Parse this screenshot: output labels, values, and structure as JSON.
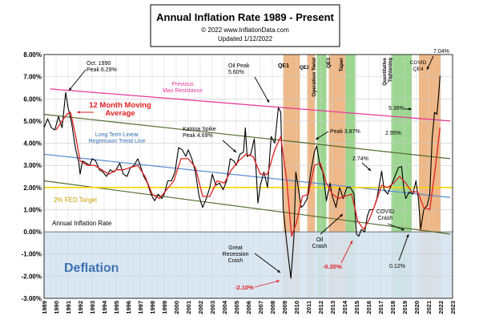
{
  "header": {
    "title": "Annual  Inflation Rate 1989 - Present",
    "copyright": "© 2022  www.InflationData.com",
    "updated": "Updated   1/12/2022"
  },
  "chart_data": {
    "type": "line",
    "title": "Annual  Inflation Rate 1989 - Present",
    "xlabel": "",
    "ylabel": "",
    "xlim": [
      1989,
      2023
    ],
    "ylim": [
      -3.0,
      8.0
    ],
    "grid": true,
    "x_ticks": [
      "1989",
      "1990",
      "1991",
      "1992",
      "1993",
      "1994",
      "1995",
      "1996",
      "1997",
      "1998",
      "1999",
      "2000",
      "2001",
      "2002",
      "2003",
      "2004",
      "2005",
      "2006",
      "2007",
      "2008",
      "2009",
      "2010",
      "2011",
      "2012",
      "2013",
      "2014",
      "2015",
      "2016",
      "2017",
      "2018",
      "2019",
      "2020",
      "2021",
      "2022",
      "2023"
    ],
    "y_ticks": [
      "-3.00%",
      "-2.00%",
      "-1.00%",
      "0.00%",
      "1.00%",
      "2.00%",
      "3.00%",
      "4.00%",
      "5.00%",
      "6.00%",
      "7.00%",
      "8.00%"
    ],
    "series": [
      {
        "name": "Annual Inflation Rate",
        "color": "#000000",
        "points": [
          [
            1989.0,
            4.7
          ],
          [
            1989.3,
            5.1
          ],
          [
            1989.6,
            4.7
          ],
          [
            1989.9,
            4.6
          ],
          [
            1990.2,
            5.2
          ],
          [
            1990.5,
            4.7
          ],
          [
            1990.8,
            6.29
          ],
          [
            1991.0,
            5.6
          ],
          [
            1991.3,
            4.9
          ],
          [
            1991.6,
            3.8
          ],
          [
            1991.9,
            3.1
          ],
          [
            1992.0,
            2.6
          ],
          [
            1992.2,
            3.2
          ],
          [
            1992.5,
            3.1
          ],
          [
            1992.8,
            3.0
          ],
          [
            1993.0,
            3.3
          ],
          [
            1993.3,
            3.2
          ],
          [
            1993.6,
            2.8
          ],
          [
            1993.9,
            2.7
          ],
          [
            1994.2,
            2.5
          ],
          [
            1994.5,
            2.8
          ],
          [
            1994.8,
            2.7
          ],
          [
            1995.0,
            2.8
          ],
          [
            1995.3,
            3.1
          ],
          [
            1995.6,
            2.6
          ],
          [
            1995.9,
            2.5
          ],
          [
            1996.2,
            2.9
          ],
          [
            1996.5,
            3.0
          ],
          [
            1996.8,
            3.3
          ],
          [
            1997.0,
            3.0
          ],
          [
            1997.3,
            2.5
          ],
          [
            1997.6,
            2.2
          ],
          [
            1997.9,
            1.7
          ],
          [
            1998.2,
            1.4
          ],
          [
            1998.5,
            1.7
          ],
          [
            1998.8,
            1.5
          ],
          [
            1999.0,
            1.7
          ],
          [
            1999.3,
            2.3
          ],
          [
            1999.6,
            2.3
          ],
          [
            1999.9,
            2.7
          ],
          [
            2000.2,
            3.8
          ],
          [
            2000.5,
            3.7
          ],
          [
            2000.8,
            3.4
          ],
          [
            2001.0,
            3.7
          ],
          [
            2001.3,
            3.3
          ],
          [
            2001.6,
            2.7
          ],
          [
            2001.9,
            1.6
          ],
          [
            2002.2,
            1.1
          ],
          [
            2002.5,
            1.5
          ],
          [
            2002.8,
            2.0
          ],
          [
            2003.0,
            2.6
          ],
          [
            2003.3,
            2.1
          ],
          [
            2003.6,
            2.2
          ],
          [
            2003.9,
            1.9
          ],
          [
            2004.2,
            2.3
          ],
          [
            2004.5,
            3.3
          ],
          [
            2004.8,
            3.2
          ],
          [
            2005.0,
            3.0
          ],
          [
            2005.3,
            3.5
          ],
          [
            2005.6,
            3.6
          ],
          [
            2005.75,
            4.69
          ],
          [
            2005.9,
            3.4
          ],
          [
            2006.2,
            3.5
          ],
          [
            2006.5,
            4.2
          ],
          [
            2006.8,
            1.3
          ],
          [
            2007.0,
            2.1
          ],
          [
            2007.3,
            2.7
          ],
          [
            2007.6,
            2.0
          ],
          [
            2007.9,
            4.3
          ],
          [
            2008.2,
            4.0
          ],
          [
            2008.5,
            5.6
          ],
          [
            2008.7,
            5.4
          ],
          [
            2008.9,
            1.1
          ],
          [
            2009.1,
            0.0
          ],
          [
            2009.3,
            -1.0
          ],
          [
            2009.55,
            -2.1
          ],
          [
            2009.8,
            -0.2
          ],
          [
            2009.95,
            2.7
          ],
          [
            2010.1,
            2.2
          ],
          [
            2010.4,
            1.1
          ],
          [
            2010.6,
            1.2
          ],
          [
            2010.9,
            1.5
          ],
          [
            2011.2,
            2.7
          ],
          [
            2011.5,
            3.6
          ],
          [
            2011.7,
            3.87
          ],
          [
            2011.95,
            3.0
          ],
          [
            2012.2,
            2.7
          ],
          [
            2012.5,
            1.4
          ],
          [
            2012.8,
            2.2
          ],
          [
            2013.0,
            1.6
          ],
          [
            2013.3,
            1.1
          ],
          [
            2013.6,
            2.0
          ],
          [
            2013.9,
            1.5
          ],
          [
            2014.2,
            2.0
          ],
          [
            2014.5,
            2.0
          ],
          [
            2014.8,
            1.7
          ],
          [
            2015.0,
            -0.1
          ],
          [
            2015.2,
            -0.2
          ],
          [
            2015.4,
            0.1
          ],
          [
            2015.7,
            0.0
          ],
          [
            2015.9,
            0.7
          ],
          [
            2016.1,
            1.0
          ],
          [
            2016.4,
            1.0
          ],
          [
            2016.7,
            1.5
          ],
          [
            2016.9,
            2.1
          ],
          [
            2017.1,
            2.74
          ],
          [
            2017.3,
            1.9
          ],
          [
            2017.6,
            1.7
          ],
          [
            2017.9,
            2.1
          ],
          [
            2018.2,
            2.5
          ],
          [
            2018.5,
            2.9
          ],
          [
            2018.75,
            2.95
          ],
          [
            2018.95,
            1.9
          ],
          [
            2019.1,
            1.5
          ],
          [
            2019.4,
            1.8
          ],
          [
            2019.7,
            1.7
          ],
          [
            2019.95,
            2.3
          ],
          [
            2020.15,
            1.5
          ],
          [
            2020.35,
            0.12
          ],
          [
            2020.6,
            1.0
          ],
          [
            2020.9,
            1.2
          ],
          [
            2021.1,
            1.7
          ],
          [
            2021.3,
            4.2
          ],
          [
            2021.5,
            5.39
          ],
          [
            2021.7,
            5.3
          ],
          [
            2021.85,
            6.2
          ],
          [
            2021.95,
            7.04
          ]
        ]
      },
      {
        "name": "12 Month Moving Average",
        "color": "#e02020",
        "points": [
          [
            1990.0,
            4.6
          ],
          [
            1990.5,
            5.0
          ],
          [
            1990.9,
            5.3
          ],
          [
            1991.2,
            5.4
          ],
          [
            1991.6,
            4.4
          ],
          [
            1992.0,
            3.2
          ],
          [
            1992.6,
            3.0
          ],
          [
            1993.2,
            3.0
          ],
          [
            1993.8,
            2.8
          ],
          [
            1994.4,
            2.6
          ],
          [
            1995.0,
            2.8
          ],
          [
            1995.6,
            2.8
          ],
          [
            1996.2,
            2.9
          ],
          [
            1996.8,
            3.0
          ],
          [
            1997.4,
            2.5
          ],
          [
            1998.0,
            1.7
          ],
          [
            1998.6,
            1.5
          ],
          [
            1999.2,
            1.9
          ],
          [
            1999.8,
            2.3
          ],
          [
            2000.4,
            3.3
          ],
          [
            2001.0,
            3.3
          ],
          [
            2001.6,
            2.9
          ],
          [
            2002.2,
            1.6
          ],
          [
            2002.8,
            1.6
          ],
          [
            2003.4,
            2.3
          ],
          [
            2004.0,
            2.2
          ],
          [
            2004.6,
            2.8
          ],
          [
            2005.2,
            3.2
          ],
          [
            2005.8,
            3.5
          ],
          [
            2006.4,
            3.4
          ],
          [
            2007.0,
            2.6
          ],
          [
            2007.6,
            2.6
          ],
          [
            2008.2,
            3.7
          ],
          [
            2008.7,
            4.3
          ],
          [
            2009.2,
            2.3
          ],
          [
            2009.6,
            -0.2
          ],
          [
            2010.0,
            0.4
          ],
          [
            2010.5,
            1.6
          ],
          [
            2011.0,
            1.7
          ],
          [
            2011.5,
            3.0
          ],
          [
            2012.0,
            3.1
          ],
          [
            2012.5,
            2.2
          ],
          [
            2013.0,
            1.7
          ],
          [
            2013.5,
            1.5
          ],
          [
            2014.0,
            1.6
          ],
          [
            2014.6,
            1.7
          ],
          [
            2015.1,
            0.5
          ],
          [
            2015.6,
            0.1
          ],
          [
            2016.1,
            0.6
          ],
          [
            2016.6,
            1.3
          ],
          [
            2017.1,
            2.1
          ],
          [
            2017.6,
            2.0
          ],
          [
            2018.1,
            2.2
          ],
          [
            2018.6,
            2.5
          ],
          [
            2019.1,
            2.2
          ],
          [
            2019.6,
            1.8
          ],
          [
            2020.1,
            1.8
          ],
          [
            2020.6,
            1.1
          ],
          [
            2021.1,
            1.0
          ],
          [
            2021.5,
            2.6
          ],
          [
            2021.95,
            4.7
          ]
        ]
      }
    ],
    "trend_lines": [
      {
        "name": "Previous Max Resistance",
        "color": "#e8379a",
        "from": [
          1989.5,
          6.45
        ],
        "to": [
          2022.8,
          5.0
        ]
      },
      {
        "name": "Long Term Linear Regression Trend Line",
        "color": "#5a8fd0",
        "from": [
          1989.0,
          3.5
        ],
        "to": [
          2022.8,
          1.55
        ]
      },
      {
        "name": "upper channel",
        "color": "#556b2f",
        "from": [
          1989.0,
          5.3
        ],
        "to": [
          2022.8,
          3.3
        ]
      },
      {
        "name": "lower channel",
        "color": "#556b2f",
        "from": [
          1989.0,
          2.3
        ],
        "to": [
          2022.8,
          -0.1
        ]
      }
    ],
    "fed_target": {
      "label": "2% FED Target",
      "value": 2.0,
      "color": "#ffd400"
    },
    "shaded_periods": [
      {
        "label": "QE1",
        "start": 2008.9,
        "end": 2010.3,
        "color": "#e8a060"
      },
      {
        "label": "QE2",
        "start": 2010.9,
        "end": 2011.55,
        "color": "#e8a060"
      },
      {
        "label": "Operation Twist",
        "start": 2011.7,
        "end": 2012.5,
        "color": "#7cc86c"
      },
      {
        "label": "QE3",
        "start": 2012.7,
        "end": 2014.1,
        "color": "#e8a060"
      },
      {
        "label": "Taper",
        "start": 2014.1,
        "end": 2014.9,
        "color": "#7cc86c"
      },
      {
        "label": "Quantitative Tightening",
        "start": 2017.9,
        "end": 2019.6,
        "color": "#7cc86c"
      },
      {
        "label": "COVID QE4",
        "start": 2020.2,
        "end": 2022.0,
        "color": "#e8a060"
      }
    ],
    "deflation_label": "Deflation",
    "annotations": [
      {
        "text": "Oct. 1990 Peak 6.29%"
      },
      {
        "text": "12 Month Moving Average"
      },
      {
        "text": "Previous Max Resistance"
      },
      {
        "text": "Katrina Spike Peak 4.69%"
      },
      {
        "text": "Oil Peak 5.60%"
      },
      {
        "text": "Long Term Linear Regression Trend Line"
      },
      {
        "text": "Peak 3.87%"
      },
      {
        "text": "2.95%"
      },
      {
        "text": "2.74%"
      },
      {
        "text": "5.39%"
      },
      {
        "text": "7.04%"
      },
      {
        "text": "2% FED Target"
      },
      {
        "text": "Annual Inflation Rate"
      },
      {
        "text": "Great Recession Crash"
      },
      {
        "text": "-2.10%"
      },
      {
        "text": "Oil Crash"
      },
      {
        "text": "-0.20%"
      },
      {
        "text": "COVID Crash"
      },
      {
        "text": "0.12%"
      }
    ]
  }
}
